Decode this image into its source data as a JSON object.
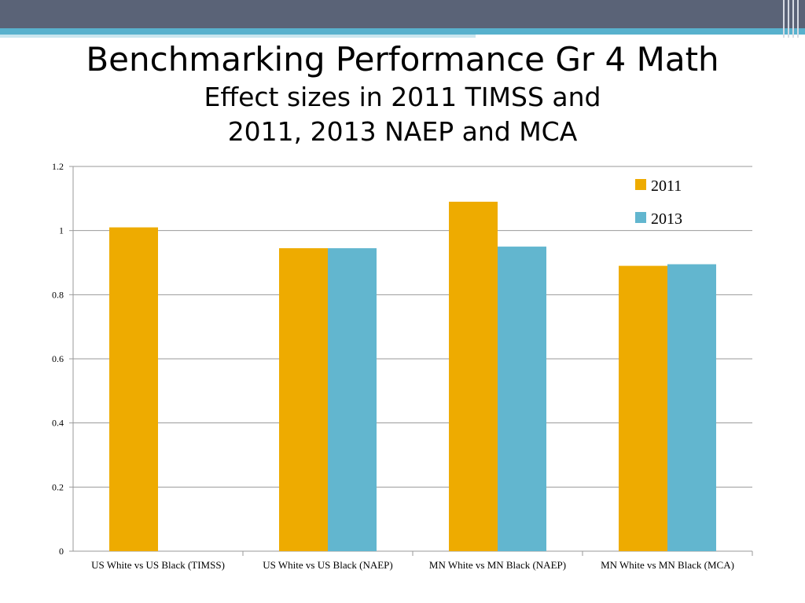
{
  "slide": {
    "title_line1": "Benchmarking Performance Gr 4 Math",
    "title_line2": "Effect sizes in 2011 TIMSS and",
    "title_line3": "2011, 2013 NAEP and MCA"
  },
  "colors": {
    "series_2011": "#eeab00",
    "series_2013": "#62b6cf",
    "header_band": "#5a6377",
    "accent_stripe": "#58b1cd"
  },
  "chart_data": {
    "type": "bar",
    "title": "",
    "xlabel": "",
    "ylabel": "",
    "ylim": [
      0,
      1.2
    ],
    "yticks": [
      "0",
      "0.2",
      "0.4",
      "0.6",
      "0.8",
      "1",
      "1.2"
    ],
    "grid": true,
    "legend_position": "top-right",
    "categories": [
      "US White vs US Black (TIMSS)",
      "US White vs US Black (NAEP)",
      "MN White vs MN Black (NAEP)",
      "MN White vs MN Black (MCA)"
    ],
    "series": [
      {
        "name": "2011",
        "values": [
          1.01,
          0.945,
          1.09,
          0.89
        ]
      },
      {
        "name": "2013",
        "values": [
          null,
          0.945,
          0.95,
          0.895
        ]
      }
    ]
  }
}
